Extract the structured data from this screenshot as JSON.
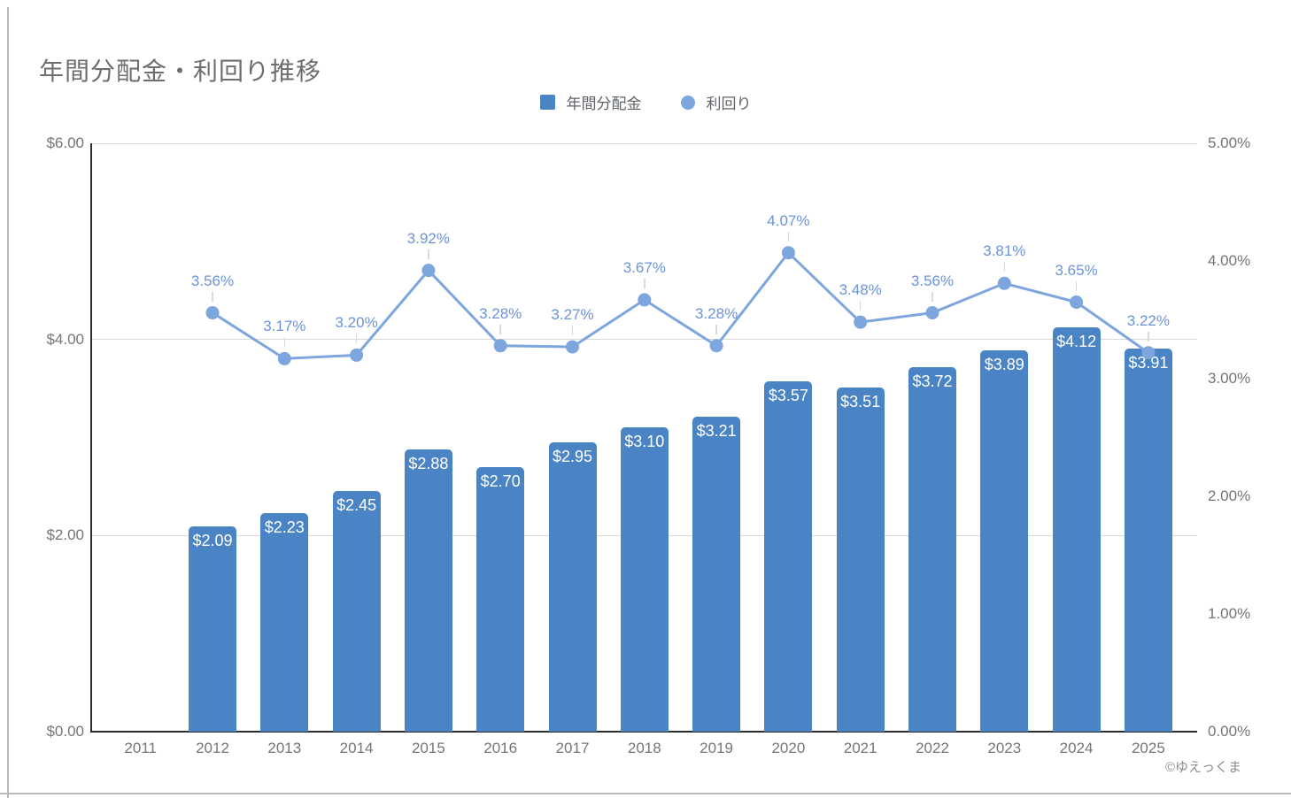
{
  "page": {
    "title": "年間分配金・利回り推移",
    "watermark": "©ゆえっくま"
  },
  "chart_data": {
    "type": "combo",
    "title": "年間分配金・利回り推移",
    "legend_position": "top",
    "grid": "horizontal-only",
    "categories": [
      "2011",
      "2012",
      "2013",
      "2014",
      "2015",
      "2016",
      "2017",
      "2018",
      "2019",
      "2020",
      "2021",
      "2022",
      "2023",
      "2024",
      "2025"
    ],
    "series": [
      {
        "name": "年間分配金",
        "type": "bar",
        "axis": "left",
        "color": "#4a84c4",
        "values": [
          null,
          2.09,
          2.23,
          2.45,
          2.88,
          2.7,
          2.95,
          3.1,
          3.21,
          3.57,
          3.51,
          3.72,
          3.89,
          4.12,
          3.91
        ],
        "labels": [
          null,
          "$2.09",
          "$2.23",
          "$2.45",
          "$2.88",
          "$2.70",
          "$2.95",
          "$3.10",
          "$3.21",
          "$3.57",
          "$3.51",
          "$3.72",
          "$3.89",
          "$4.12",
          "$3.91"
        ]
      },
      {
        "name": "利回り",
        "type": "line",
        "axis": "right",
        "color": "#7ca6dd",
        "label_color": "#6b94d8",
        "values": [
          null,
          3.56,
          3.17,
          3.2,
          3.92,
          3.28,
          3.27,
          3.67,
          3.28,
          4.07,
          3.48,
          3.56,
          3.81,
          3.65,
          3.22
        ],
        "labels": [
          null,
          "3.56%",
          "3.17%",
          "3.20%",
          "3.92%",
          "3.28%",
          "3.27%",
          "3.67%",
          "3.28%",
          "4.07%",
          "3.48%",
          "3.56%",
          "3.81%",
          "3.65%",
          "3.22%"
        ]
      }
    ],
    "left_axis": {
      "min": 0,
      "max": 6,
      "ticks": [
        {
          "value": 6,
          "label": "$6.00"
        },
        {
          "value": 4,
          "label": "$4.00"
        },
        {
          "value": 2,
          "label": "$2.00"
        },
        {
          "value": 0,
          "label": "$0.00"
        }
      ]
    },
    "right_axis": {
      "min": 0,
      "max": 5,
      "ticks": [
        {
          "value": 5,
          "label": "5.00%"
        },
        {
          "value": 4,
          "label": "4.00%"
        },
        {
          "value": 3,
          "label": "3.00%"
        },
        {
          "value": 2,
          "label": "2.00%"
        },
        {
          "value": 1,
          "label": "1.00%"
        },
        {
          "value": 0,
          "label": "0.00%"
        }
      ]
    }
  }
}
